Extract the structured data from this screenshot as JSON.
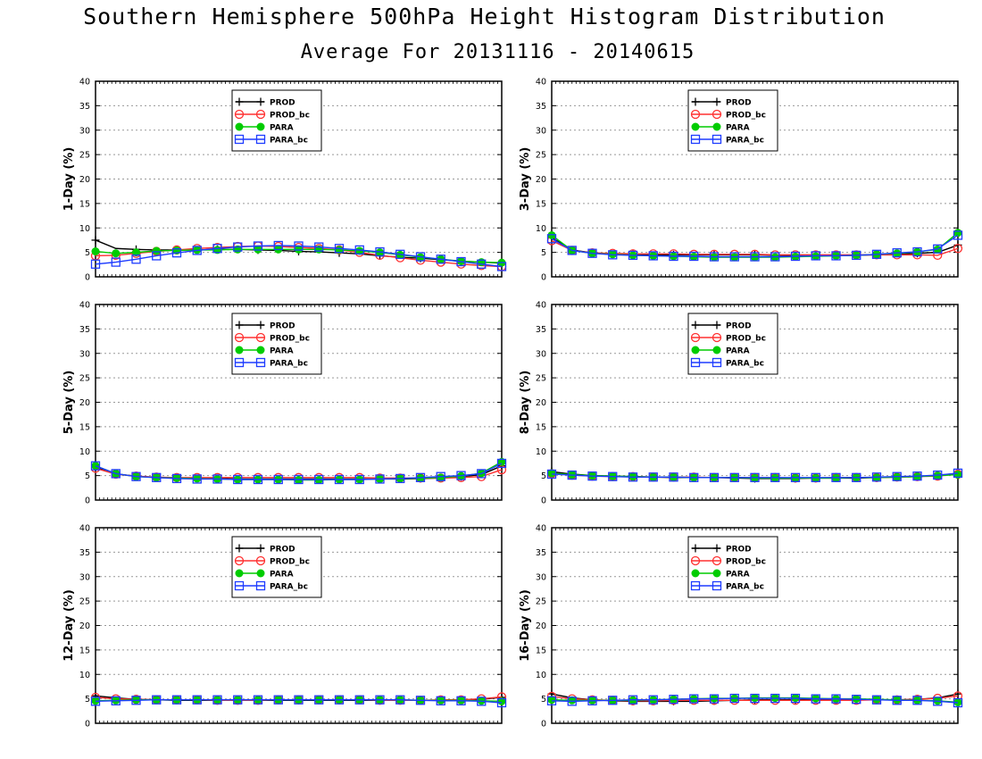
{
  "title": "Southern Hemisphere 500hPa Height Histogram Distribution",
  "subtitle": "Average For 20131116 - 20140615",
  "colors": {
    "PROD": "#000000",
    "PROD_bc": "#ff3030",
    "PARA": "#00cc00",
    "PARA_bc": "#1e3cff",
    "grid": "#999999"
  },
  "chart_data": [
    {
      "type": "line",
      "ylabel": "1-Day (%)",
      "ylim": [
        0,
        40
      ],
      "yticks": [
        0,
        5,
        10,
        15,
        20,
        25,
        30,
        35,
        40
      ],
      "grid": true,
      "legend": "top-center",
      "x": [
        1,
        2,
        3,
        4,
        5,
        6,
        7,
        8,
        9,
        10,
        11,
        12,
        13,
        14,
        15,
        16,
        17,
        18,
        19,
        20,
        21
      ],
      "series": [
        {
          "name": "PROD",
          "marker": "plus",
          "values": [
            7.5,
            5.8,
            5.6,
            5.5,
            5.5,
            5.5,
            5.6,
            5.6,
            5.5,
            5.4,
            5.2,
            5.1,
            4.9,
            4.7,
            4.3,
            4.0,
            3.8,
            3.5,
            3.2,
            3.0,
            2.8
          ]
        },
        {
          "name": "PROD_bc",
          "marker": "circle",
          "values": [
            4.3,
            4.4,
            4.8,
            5.2,
            5.5,
            5.8,
            6.0,
            6.2,
            6.3,
            6.2,
            6.0,
            5.8,
            5.5,
            5.0,
            4.4,
            3.9,
            3.4,
            3.0,
            2.6,
            2.3,
            2.1
          ]
        },
        {
          "name": "PARA",
          "marker": "dot",
          "values": [
            5.2,
            4.8,
            5.0,
            5.3,
            5.4,
            5.5,
            5.5,
            5.6,
            5.6,
            5.6,
            5.6,
            5.6,
            5.5,
            5.3,
            5.0,
            4.5,
            4.0,
            3.6,
            3.2,
            3.0,
            2.9
          ]
        },
        {
          "name": "PARA_bc",
          "marker": "square",
          "values": [
            2.6,
            3.0,
            3.6,
            4.3,
            4.9,
            5.4,
            5.8,
            6.1,
            6.3,
            6.4,
            6.3,
            6.1,
            5.8,
            5.5,
            5.1,
            4.6,
            4.1,
            3.6,
            3.1,
            2.6,
            2.1
          ]
        }
      ]
    },
    {
      "type": "line",
      "ylabel": "3-Day (%)",
      "ylim": [
        0,
        40
      ],
      "yticks": [
        0,
        5,
        10,
        15,
        20,
        25,
        30,
        35,
        40
      ],
      "grid": true,
      "legend": "top-center",
      "x": [
        1,
        2,
        3,
        4,
        5,
        6,
        7,
        8,
        9,
        10,
        11,
        12,
        13,
        14,
        15,
        16,
        17,
        18,
        19,
        20,
        21
      ],
      "series": [
        {
          "name": "PROD",
          "marker": "plus",
          "values": [
            8.0,
            5.5,
            4.9,
            4.7,
            4.6,
            4.5,
            4.5,
            4.5,
            4.5,
            4.5,
            4.5,
            4.4,
            4.3,
            4.3,
            4.3,
            4.4,
            4.5,
            4.6,
            4.8,
            5.0,
            6.5
          ]
        },
        {
          "name": "PROD_bc",
          "marker": "circle",
          "values": [
            7.4,
            5.4,
            4.9,
            4.8,
            4.7,
            4.7,
            4.7,
            4.6,
            4.6,
            4.6,
            4.6,
            4.5,
            4.5,
            4.5,
            4.5,
            4.5,
            4.5,
            4.5,
            4.5,
            4.4,
            5.8
          ]
        },
        {
          "name": "PARA",
          "marker": "dot",
          "values": [
            8.5,
            5.4,
            4.8,
            4.6,
            4.4,
            4.3,
            4.2,
            4.1,
            4.0,
            4.0,
            4.0,
            4.0,
            4.1,
            4.2,
            4.3,
            4.4,
            4.6,
            4.8,
            5.1,
            5.6,
            9.0
          ]
        },
        {
          "name": "PARA_bc",
          "marker": "square",
          "values": [
            7.8,
            5.4,
            4.8,
            4.5,
            4.4,
            4.3,
            4.2,
            4.2,
            4.1,
            4.1,
            4.1,
            4.1,
            4.2,
            4.3,
            4.3,
            4.4,
            4.6,
            4.9,
            5.1,
            5.7,
            8.5
          ]
        }
      ]
    },
    {
      "type": "line",
      "ylabel": "5-Day (%)",
      "ylim": [
        0,
        40
      ],
      "yticks": [
        0,
        5,
        10,
        15,
        20,
        25,
        30,
        35,
        40
      ],
      "grid": true,
      "legend": "top-center",
      "x": [
        1,
        2,
        3,
        4,
        5,
        6,
        7,
        8,
        9,
        10,
        11,
        12,
        13,
        14,
        15,
        16,
        17,
        18,
        19,
        20,
        21
      ],
      "series": [
        {
          "name": "PROD",
          "marker": "plus",
          "values": [
            6.8,
            5.3,
            4.9,
            4.6,
            4.5,
            4.4,
            4.4,
            4.3,
            4.3,
            4.3,
            4.3,
            4.3,
            4.3,
            4.3,
            4.3,
            4.3,
            4.4,
            4.5,
            4.8,
            5.2,
            7.0
          ]
        },
        {
          "name": "PROD_bc",
          "marker": "circle",
          "values": [
            6.5,
            5.3,
            4.9,
            4.7,
            4.6,
            4.6,
            4.6,
            4.6,
            4.6,
            4.6,
            4.6,
            4.6,
            4.6,
            4.6,
            4.5,
            4.5,
            4.5,
            4.5,
            4.6,
            4.8,
            6.2
          ]
        },
        {
          "name": "PARA",
          "marker": "dot",
          "values": [
            7.0,
            5.4,
            4.8,
            4.6,
            4.5,
            4.4,
            4.3,
            4.2,
            4.2,
            4.2,
            4.1,
            4.1,
            4.2,
            4.2,
            4.3,
            4.4,
            4.5,
            4.6,
            4.9,
            5.5,
            7.8
          ]
        },
        {
          "name": "PARA_bc",
          "marker": "square",
          "values": [
            7.0,
            5.4,
            4.8,
            4.6,
            4.4,
            4.3,
            4.3,
            4.2,
            4.2,
            4.2,
            4.2,
            4.2,
            4.2,
            4.2,
            4.3,
            4.4,
            4.6,
            4.8,
            5.0,
            5.4,
            7.5
          ]
        }
      ]
    },
    {
      "type": "line",
      "ylabel": "8-Day (%)",
      "ylim": [
        0,
        40
      ],
      "yticks": [
        0,
        5,
        10,
        15,
        20,
        25,
        30,
        35,
        40
      ],
      "grid": true,
      "legend": "top-center",
      "x": [
        1,
        2,
        3,
        4,
        5,
        6,
        7,
        8,
        9,
        10,
        11,
        12,
        13,
        14,
        15,
        16,
        17,
        18,
        19,
        20,
        21
      ],
      "series": [
        {
          "name": "PROD",
          "marker": "plus",
          "values": [
            5.8,
            5.3,
            5.0,
            4.9,
            4.8,
            4.7,
            4.6,
            4.6,
            4.6,
            4.5,
            4.4,
            4.4,
            4.4,
            4.5,
            4.5,
            4.5,
            4.6,
            4.7,
            4.8,
            5.0,
            5.5
          ]
        },
        {
          "name": "PROD_bc",
          "marker": "circle",
          "values": [
            5.4,
            5.1,
            4.9,
            4.8,
            4.8,
            4.7,
            4.7,
            4.7,
            4.6,
            4.6,
            4.6,
            4.6,
            4.5,
            4.5,
            4.6,
            4.6,
            4.6,
            4.7,
            4.8,
            4.9,
            5.3
          ]
        },
        {
          "name": "PARA",
          "marker": "dot",
          "values": [
            5.5,
            5.2,
            5.0,
            4.9,
            4.8,
            4.7,
            4.7,
            4.6,
            4.6,
            4.6,
            4.5,
            4.5,
            4.5,
            4.5,
            4.5,
            4.6,
            4.6,
            4.7,
            4.8,
            5.0,
            5.2
          ]
        },
        {
          "name": "PARA_bc",
          "marker": "square",
          "values": [
            5.3,
            5.1,
            4.9,
            4.8,
            4.7,
            4.7,
            4.7,
            4.6,
            4.6,
            4.6,
            4.6,
            4.6,
            4.6,
            4.6,
            4.6,
            4.6,
            4.7,
            4.8,
            4.9,
            5.1,
            5.5
          ]
        }
      ]
    },
    {
      "type": "line",
      "ylabel": "12-Day (%)",
      "ylim": [
        0,
        40
      ],
      "yticks": [
        0,
        5,
        10,
        15,
        20,
        25,
        30,
        35,
        40
      ],
      "grid": true,
      "legend": "top-center",
      "x": [
        1,
        2,
        3,
        4,
        5,
        6,
        7,
        8,
        9,
        10,
        11,
        12,
        13,
        14,
        15,
        16,
        17,
        18,
        19,
        20,
        21
      ],
      "series": [
        {
          "name": "PROD",
          "marker": "plus",
          "values": [
            5.6,
            5.2,
            4.9,
            4.8,
            4.7,
            4.7,
            4.7,
            4.7,
            4.7,
            4.7,
            4.7,
            4.7,
            4.7,
            4.7,
            4.7,
            4.7,
            4.7,
            4.7,
            4.8,
            4.9,
            5.3
          ]
        },
        {
          "name": "PROD_bc",
          "marker": "circle",
          "values": [
            5.3,
            5.0,
            4.9,
            4.8,
            4.8,
            4.8,
            4.7,
            4.7,
            4.7,
            4.8,
            4.8,
            4.8,
            4.8,
            4.8,
            4.7,
            4.7,
            4.7,
            4.8,
            4.8,
            5.0,
            5.4
          ]
        },
        {
          "name": "PARA",
          "marker": "dot",
          "values": [
            4.6,
            4.7,
            4.8,
            4.8,
            4.8,
            4.8,
            4.8,
            4.8,
            4.8,
            4.8,
            4.8,
            4.8,
            4.8,
            4.8,
            4.8,
            4.8,
            4.7,
            4.7,
            4.7,
            4.6,
            4.5
          ]
        },
        {
          "name": "PARA_bc",
          "marker": "square",
          "values": [
            4.5,
            4.6,
            4.7,
            4.8,
            4.8,
            4.8,
            4.8,
            4.8,
            4.8,
            4.8,
            4.8,
            4.8,
            4.8,
            4.8,
            4.8,
            4.8,
            4.7,
            4.6,
            4.6,
            4.5,
            4.2
          ]
        }
      ]
    },
    {
      "type": "line",
      "ylabel": "16-Day (%)",
      "ylim": [
        0,
        40
      ],
      "yticks": [
        0,
        5,
        10,
        15,
        20,
        25,
        30,
        35,
        40
      ],
      "grid": true,
      "legend": "top-center",
      "x": [
        1,
        2,
        3,
        4,
        5,
        6,
        7,
        8,
        9,
        10,
        11,
        12,
        13,
        14,
        15,
        16,
        17,
        18,
        19,
        20,
        21
      ],
      "series": [
        {
          "name": "PROD",
          "marker": "plus",
          "values": [
            6.0,
            5.2,
            4.8,
            4.6,
            4.5,
            4.5,
            4.5,
            4.5,
            4.6,
            4.7,
            4.8,
            4.8,
            4.8,
            4.8,
            4.8,
            4.8,
            4.8,
            4.8,
            4.9,
            5.2,
            6.0
          ]
        },
        {
          "name": "PROD_bc",
          "marker": "circle",
          "values": [
            5.5,
            5.0,
            4.8,
            4.7,
            4.6,
            4.6,
            4.7,
            4.7,
            4.7,
            4.7,
            4.7,
            4.7,
            4.7,
            4.7,
            4.7,
            4.7,
            4.8,
            4.8,
            4.9,
            5.1,
            5.6
          ]
        },
        {
          "name": "PARA",
          "marker": "dot",
          "values": [
            4.8,
            4.7,
            4.7,
            4.7,
            4.7,
            4.8,
            4.9,
            5.0,
            5.1,
            5.1,
            5.2,
            5.2,
            5.2,
            5.1,
            5.0,
            5.0,
            4.9,
            4.8,
            4.7,
            4.6,
            4.3
          ]
        },
        {
          "name": "PARA_bc",
          "marker": "square",
          "values": [
            4.6,
            4.5,
            4.6,
            4.7,
            4.8,
            4.8,
            4.9,
            5.0,
            5.0,
            5.1,
            5.1,
            5.1,
            5.1,
            5.0,
            5.0,
            4.9,
            4.8,
            4.7,
            4.7,
            4.5,
            4.2
          ]
        }
      ]
    }
  ]
}
